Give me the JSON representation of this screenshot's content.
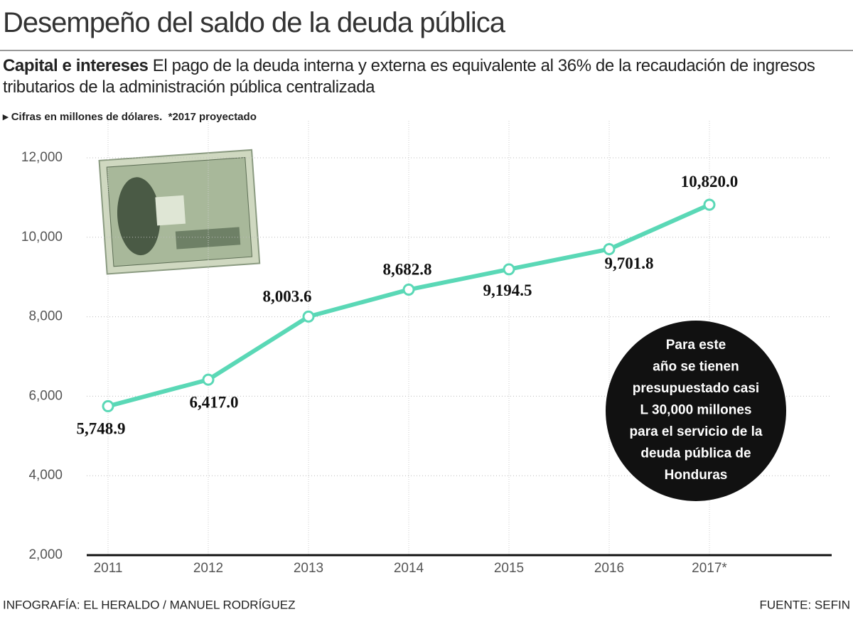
{
  "chart_data": {
    "type": "line",
    "title": "Desempeño del saldo de la deuda pública",
    "subtitle_bold": "Capital e intereses",
    "subtitle": "El pago de la deuda interna y externa es equivalente al 36% de la recaudación de ingresos tributarios de la administración pública centralizada",
    "note": "Cifras en millones de dólares.",
    "note2": "*2017 proyectado",
    "categories": [
      "2011",
      "2012",
      "2013",
      "2014",
      "2015",
      "2016",
      "2017*"
    ],
    "values": [
      5748.9,
      6417.0,
      8003.6,
      8682.8,
      9194.5,
      9701.8,
      10820.0
    ],
    "value_labels": [
      "5,748.9",
      "6,417.0",
      "8,003.6",
      "8,682.8",
      "9,194.5",
      "9,701.8",
      "10,820.0"
    ],
    "color": "#5ad8b6",
    "ylim": [
      2000,
      12000
    ],
    "yticks": [
      {
        "value": 2000,
        "label": "2,000"
      },
      {
        "value": 4000,
        "label": "4,000"
      },
      {
        "value": 6000,
        "label": "6,000"
      },
      {
        "value": 8000,
        "label": "8,000"
      },
      {
        "value": 10000,
        "label": "10,000"
      },
      {
        "value": 12000,
        "label": "12,000"
      }
    ],
    "grid": true,
    "annotation": [
      "Para este",
      "año se tienen",
      "presupuestado casi",
      "L 30,000 millones",
      "para el servicio de la",
      "deuda pública de",
      "Honduras"
    ],
    "credit": "INFOGRAFÍA: EL HERALDO / MANUEL RODRÍGUEZ",
    "source": "FUENTE: SEFIN"
  }
}
